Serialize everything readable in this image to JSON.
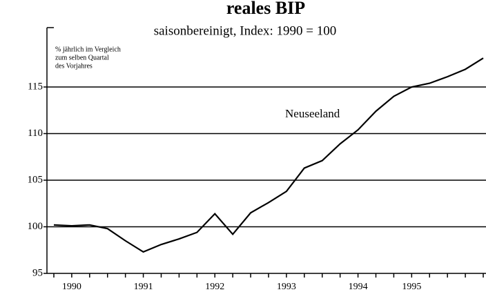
{
  "chart_data": {
    "type": "line",
    "title": "reales BIP",
    "subtitle": "saisonbereinigt, Index: 1990 = 100",
    "note": [
      "% jährlich im Vergleich",
      "zum selben Quartal",
      "des Vorjahres"
    ],
    "categories": [
      null,
      "1990",
      null,
      null,
      null,
      "1991",
      null,
      null,
      null,
      "1992",
      null,
      null,
      null,
      "1993",
      null,
      null,
      null,
      "1994",
      null,
      null,
      "1995",
      null,
      null,
      null,
      null
    ],
    "series": [
      {
        "name": "Neuseeland",
        "color": "#000000",
        "values": [
          100.2,
          100.1,
          100.2,
          99.8,
          98.5,
          97.3,
          98.1,
          98.7,
          99.4,
          101.4,
          99.2,
          101.5,
          102.6,
          103.8,
          106.3,
          107.1,
          108.9,
          110.4,
          112.4,
          114.0,
          115.0,
          115.4,
          116.1,
          116.9,
          118.1
        ]
      }
    ],
    "ylim": [
      95,
      121
    ],
    "yticks": [
      95,
      100,
      105,
      110,
      115
    ],
    "grid": true
  }
}
